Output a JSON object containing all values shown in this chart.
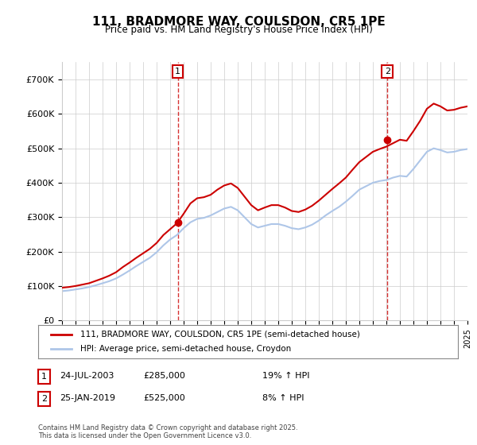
{
  "title": "111, BRADMORE WAY, COULSDON, CR5 1PE",
  "subtitle": "Price paid vs. HM Land Registry's House Price Index (HPI)",
  "legend_line1": "111, BRADMORE WAY, COULSDON, CR5 1PE (semi-detached house)",
  "legend_line2": "HPI: Average price, semi-detached house, Croydon",
  "annotation1_label": "1",
  "annotation1_date": "24-JUL-2003",
  "annotation1_price": "£285,000",
  "annotation1_hpi": "19% ↑ HPI",
  "annotation2_label": "2",
  "annotation2_date": "25-JAN-2019",
  "annotation2_price": "£525,000",
  "annotation2_hpi": "8% ↑ HPI",
  "footer": "Contains HM Land Registry data © Crown copyright and database right 2025.\nThis data is licensed under the Open Government Licence v3.0.",
  "hpi_color": "#aec6e8",
  "price_color": "#cc0000",
  "marker_color": "#cc0000",
  "vline_color": "#cc0000",
  "background_color": "#ffffff",
  "grid_color": "#cccccc",
  "ylim": [
    0,
    750000
  ],
  "yticks": [
    0,
    100000,
    200000,
    300000,
    400000,
    500000,
    600000,
    700000
  ],
  "ytick_labels": [
    "£0",
    "£100K",
    "£200K",
    "£300K",
    "£400K",
    "£500K",
    "£600K",
    "£700K"
  ],
  "xstart": 1995,
  "xend": 2025,
  "sale1_x": 2003.56,
  "sale1_y": 285000,
  "sale2_x": 2019.07,
  "sale2_y": 525000,
  "hpi_x": [
    1995,
    1995.5,
    1996,
    1996.5,
    1997,
    1997.5,
    1998,
    1998.5,
    1999,
    1999.5,
    2000,
    2000.5,
    2001,
    2001.5,
    2002,
    2002.5,
    2003,
    2003.5,
    2004,
    2004.5,
    2005,
    2005.5,
    2006,
    2006.5,
    2007,
    2007.5,
    2008,
    2008.5,
    2009,
    2009.5,
    2010,
    2010.5,
    2011,
    2011.5,
    2012,
    2012.5,
    2013,
    2013.5,
    2014,
    2014.5,
    2015,
    2015.5,
    2016,
    2016.5,
    2017,
    2017.5,
    2018,
    2018.5,
    2019,
    2019.5,
    2020,
    2020.5,
    2021,
    2021.5,
    2022,
    2022.5,
    2023,
    2023.5,
    2024,
    2024.5,
    2025
  ],
  "hpi_y": [
    85000,
    87000,
    90000,
    93000,
    97000,
    102000,
    108000,
    114000,
    122000,
    133000,
    145000,
    158000,
    170000,
    182000,
    198000,
    218000,
    235000,
    248000,
    268000,
    285000,
    295000,
    298000,
    305000,
    315000,
    325000,
    330000,
    320000,
    300000,
    280000,
    270000,
    275000,
    280000,
    280000,
    275000,
    268000,
    265000,
    270000,
    278000,
    290000,
    305000,
    318000,
    330000,
    345000,
    362000,
    380000,
    390000,
    400000,
    405000,
    408000,
    415000,
    420000,
    418000,
    440000,
    465000,
    490000,
    500000,
    495000,
    488000,
    490000,
    495000,
    498000
  ],
  "price_x": [
    1995,
    1995.5,
    1996,
    1996.5,
    1997,
    1997.5,
    1998,
    1998.5,
    1999,
    1999.5,
    2000,
    2000.5,
    2001,
    2001.5,
    2002,
    2002.5,
    2003,
    2003.5,
    2004,
    2004.5,
    2005,
    2005.5,
    2006,
    2006.5,
    2007,
    2007.5,
    2008,
    2008.5,
    2009,
    2009.5,
    2010,
    2010.5,
    2011,
    2011.5,
    2012,
    2012.5,
    2013,
    2013.5,
    2014,
    2014.5,
    2015,
    2015.5,
    2016,
    2016.5,
    2017,
    2017.5,
    2018,
    2018.5,
    2019,
    2019.5,
    2020,
    2020.5,
    2021,
    2021.5,
    2022,
    2022.5,
    2023,
    2023.5,
    2024,
    2024.5,
    2025
  ],
  "price_y": [
    95000,
    97000,
    100000,
    104000,
    108000,
    115000,
    122000,
    130000,
    140000,
    155000,
    168000,
    182000,
    195000,
    208000,
    225000,
    248000,
    265000,
    282000,
    310000,
    340000,
    355000,
    358000,
    365000,
    380000,
    392000,
    398000,
    385000,
    360000,
    335000,
    320000,
    328000,
    335000,
    335000,
    328000,
    318000,
    315000,
    322000,
    333000,
    348000,
    365000,
    382000,
    398000,
    415000,
    438000,
    460000,
    475000,
    490000,
    498000,
    505000,
    515000,
    525000,
    522000,
    550000,
    580000,
    615000,
    630000,
    622000,
    610000,
    612000,
    618000,
    622000
  ],
  "xtick_positions": [
    1995,
    1996,
    1997,
    1998,
    1999,
    2000,
    2001,
    2002,
    2003,
    2004,
    2005,
    2006,
    2007,
    2008,
    2009,
    2010,
    2011,
    2012,
    2013,
    2014,
    2015,
    2016,
    2017,
    2018,
    2019,
    2020,
    2021,
    2022,
    2023,
    2024,
    2025
  ]
}
